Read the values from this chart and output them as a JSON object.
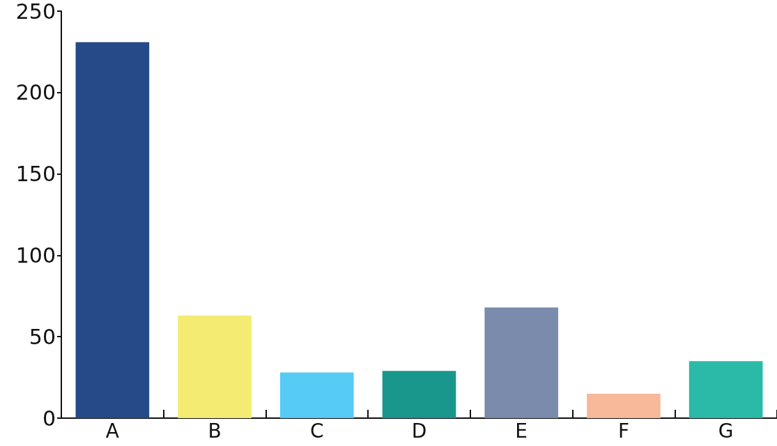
{
  "chart_data": {
    "type": "bar",
    "categories": [
      "A",
      "B",
      "C",
      "D",
      "E",
      "F",
      "G"
    ],
    "values": [
      231,
      63,
      28,
      29,
      68,
      15,
      35
    ],
    "colors": [
      "#264a87",
      "#f4ec72",
      "#55cbf5",
      "#1a978c",
      "#7a8bac",
      "#f8b89a",
      "#2bbaa8"
    ],
    "ylim": [
      0,
      250
    ],
    "yticks": [
      0,
      50,
      100,
      150,
      200,
      250
    ],
    "grid": false
  }
}
